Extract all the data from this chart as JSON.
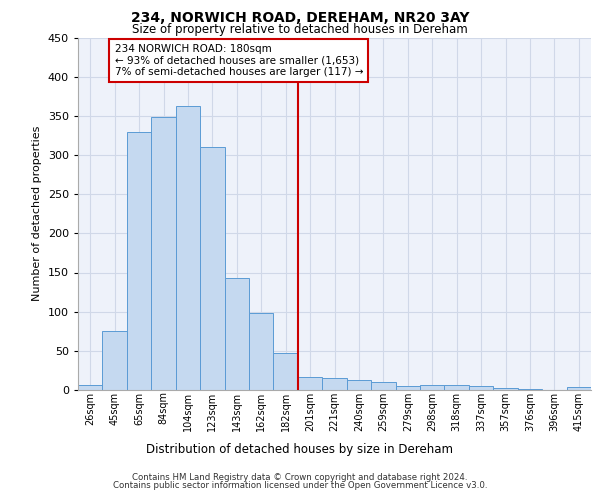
{
  "title": "234, NORWICH ROAD, DEREHAM, NR20 3AY",
  "subtitle": "Size of property relative to detached houses in Dereham",
  "dist_label": "Distribution of detached houses by size in Dereham",
  "ylabel": "Number of detached properties",
  "categories": [
    "26sqm",
    "45sqm",
    "65sqm",
    "84sqm",
    "104sqm",
    "123sqm",
    "143sqm",
    "162sqm",
    "182sqm",
    "201sqm",
    "221sqm",
    "240sqm",
    "259sqm",
    "279sqm",
    "298sqm",
    "318sqm",
    "337sqm",
    "357sqm",
    "376sqm",
    "396sqm",
    "415sqm"
  ],
  "values": [
    7,
    75,
    330,
    348,
    363,
    310,
    143,
    98,
    47,
    17,
    15,
    13,
    10,
    5,
    7,
    6,
    5,
    3,
    1,
    0,
    4
  ],
  "bar_color": "#c5d9f0",
  "bar_edgecolor": "#5b9bd5",
  "vline_color": "#cc0000",
  "vline_index": 8.5,
  "annotation_text": "234 NORWICH ROAD: 180sqm\n← 93% of detached houses are smaller (1,653)\n7% of semi-detached houses are larger (117) →",
  "annotation_box_color": "#ffffff",
  "annotation_box_edgecolor": "#cc0000",
  "ylim": [
    0,
    450
  ],
  "yticks": [
    0,
    50,
    100,
    150,
    200,
    250,
    300,
    350,
    400,
    450
  ],
  "grid_color": "#d0d8e8",
  "background_color": "#eef2fa",
  "footer1": "Contains HM Land Registry data © Crown copyright and database right 2024.",
  "footer2": "Contains public sector information licensed under the Open Government Licence v3.0."
}
